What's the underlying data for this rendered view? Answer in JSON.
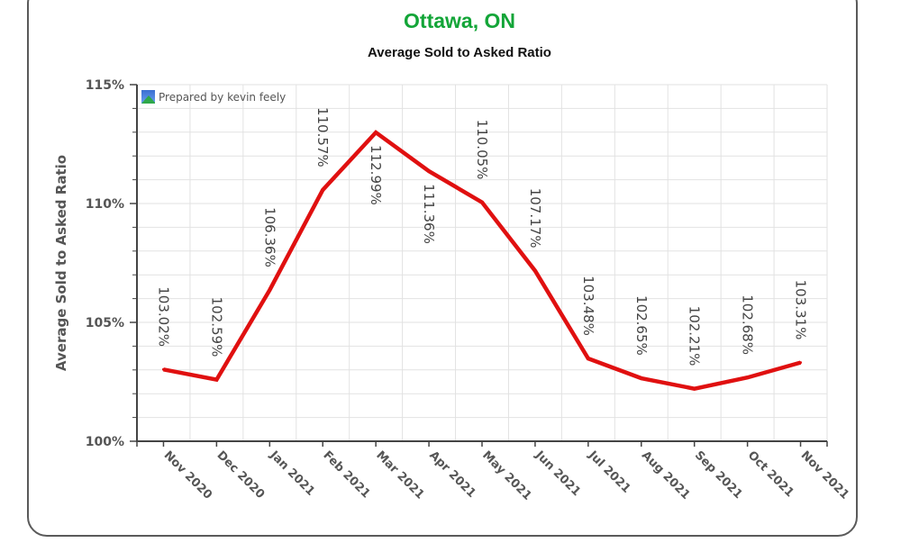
{
  "header": {
    "title": "Ottawa, ON",
    "subtitle": "Average Sold to Asked Ratio",
    "title_color": "#13a538"
  },
  "credit": {
    "text": "Prepared by kevin feely",
    "icon": "chart-logo-icon"
  },
  "chart_data": {
    "type": "line",
    "title": "Average Sold to Asked Ratio",
    "ylabel": "Average Sold to Asked Ratio",
    "xlabel": "",
    "categories": [
      "Nov 2020",
      "Dec 2020",
      "Jan 2021",
      "Feb 2021",
      "Mar 2021",
      "Apr 2021",
      "May 2021",
      "Jun 2021",
      "Jul 2021",
      "Aug 2021",
      "Sep 2021",
      "Oct 2021",
      "Nov 2021"
    ],
    "values": [
      103.02,
      102.59,
      106.36,
      110.57,
      112.99,
      111.36,
      110.05,
      107.17,
      103.48,
      102.65,
      102.21,
      102.68,
      103.31
    ],
    "data_labels": [
      "103.02%",
      "102.59%",
      "106.36%",
      "110.57%",
      "112.99%",
      "111.36%",
      "110.05%",
      "107.17%",
      "103.48%",
      "102.65%",
      "102.21%",
      "102.68%",
      "103.31%"
    ],
    "ylim": [
      100,
      115
    ],
    "yticks": [
      100,
      105,
      110,
      115
    ],
    "ytick_labels": [
      "100%",
      "105%",
      "110%",
      "115%"
    ],
    "grid": true,
    "line_color": "#e01010"
  }
}
